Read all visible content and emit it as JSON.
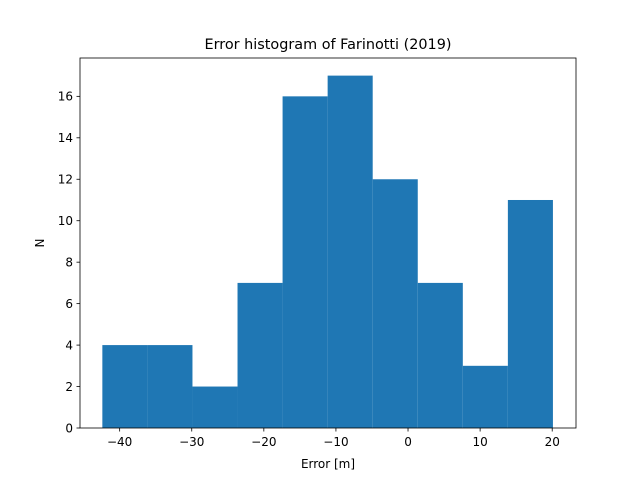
{
  "chart_data": {
    "type": "bar",
    "title": "Error histogram of Farinotti (2019)",
    "xlabel": "Error [m]",
    "ylabel": "N",
    "bar_color": "#1f77b4",
    "grid": false,
    "xlim": [
      -45.5,
      23.3
    ],
    "ylim": [
      0,
      17.85
    ],
    "xticks": [
      -40,
      -30,
      -20,
      -10,
      0,
      10,
      20
    ],
    "xtick_labels": [
      "−40",
      "−30",
      "−20",
      "−10",
      "0",
      "10",
      "20"
    ],
    "yticks": [
      0,
      2,
      4,
      6,
      8,
      10,
      12,
      14,
      16
    ],
    "ytick_labels": [
      "0",
      "2",
      "4",
      "6",
      "8",
      "10",
      "12",
      "14",
      "16"
    ],
    "bin_edges": [
      -42.4,
      -36.15,
      -29.9,
      -23.65,
      -17.4,
      -11.15,
      -4.9,
      1.35,
      7.6,
      13.85,
      20.1
    ],
    "values": [
      4,
      4,
      2,
      7,
      16,
      17,
      12,
      7,
      3,
      11
    ]
  }
}
